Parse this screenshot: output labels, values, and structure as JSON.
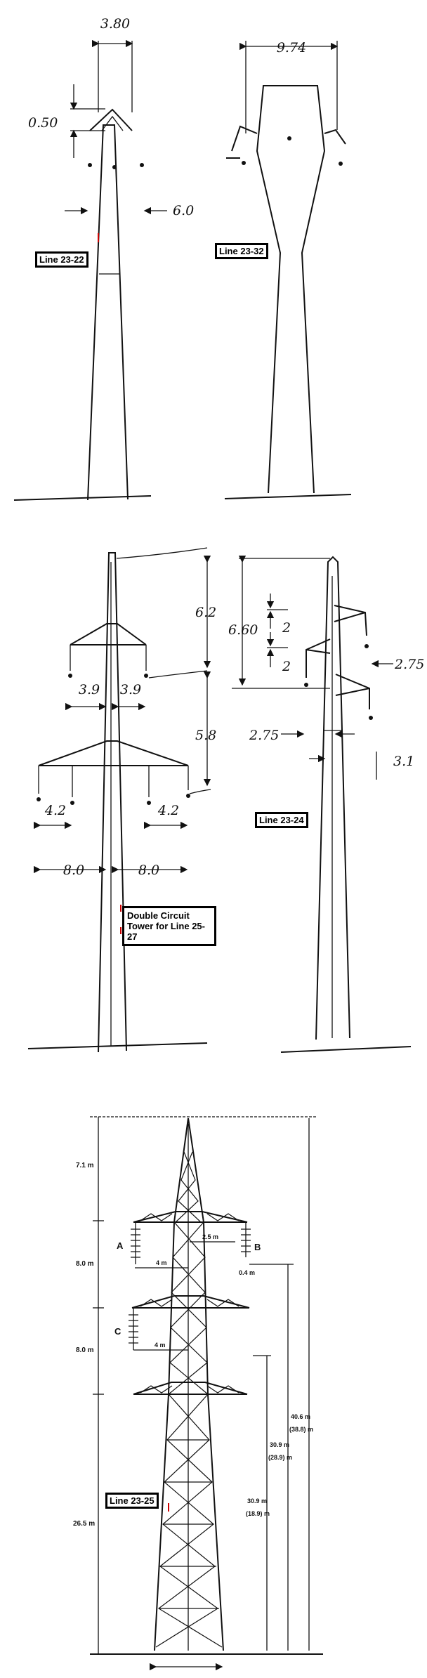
{
  "tower_1": {
    "label": "Line 23-22",
    "dim_top_width": "3.80",
    "dim_cap_height": "0.50",
    "dim_side": "6.0"
  },
  "tower_2": {
    "label": "Line 23-32",
    "dim_top_width": "9.74"
  },
  "tower_3": {
    "label": "Double Circuit Tower for Line 25-27",
    "dim_upper_gap": "6.2",
    "dim_lower_gap": "5.8",
    "dim_upper_left": "3.9",
    "dim_upper_right": "3.9",
    "dim_lower_inner_left": "4.2",
    "dim_lower_inner_right": "4.2",
    "dim_lower_left": "8.0",
    "dim_lower_right": "8.0"
  },
  "tower_4": {
    "label": "Line 23-24",
    "dim_height": "6.60",
    "dim_step_1": "2",
    "dim_step_2": "2",
    "dim_right_upper": "2.75",
    "dim_left_lower": "2.75",
    "dim_right_lower": "3.1"
  },
  "tower_5": {
    "label": "Line 23-25",
    "seg_top": "7.1 m",
    "seg_2": "8.0 m",
    "seg_3": "8.0 m",
    "seg_bottom": "26.5 m",
    "phase_a": "A",
    "phase_b": "B",
    "phase_c": "C",
    "arm_top": "2.5 m",
    "arm_mid": "4 m",
    "arm_low": "4 m",
    "insul_b": "0.4 m",
    "h_total": "40.6 m",
    "h_total_alt": "(38.8) m",
    "h_b": "30.9 m",
    "h_b_alt": "(28.9) m",
    "h_c": "30.9 m",
    "h_c_alt": "(18.9) m"
  }
}
